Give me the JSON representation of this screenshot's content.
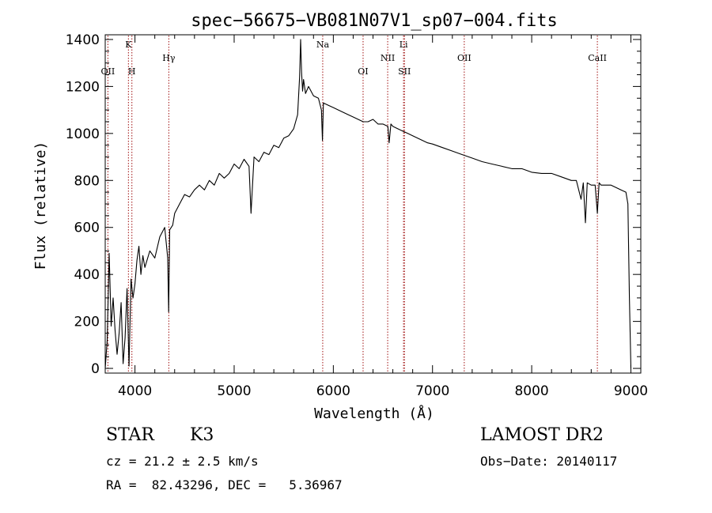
{
  "chart_data": {
    "type": "line",
    "title": "spec−56675−VB081N07V1_sp07−004.fits",
    "xlabel": "Wavelength (Å)",
    "ylabel": "Flux (relative)",
    "xlim": [
      3700,
      9100
    ],
    "ylim": [
      -20,
      1420
    ],
    "xticks": [
      4000,
      5000,
      6000,
      7000,
      8000,
      9000
    ],
    "yticks": [
      0,
      200,
      400,
      600,
      800,
      1000,
      1200,
      1400
    ],
    "grid": false,
    "line_color": "#000000",
    "marker_color": "#a01010",
    "spectral_lines": [
      {
        "label": "OII",
        "wavelength": 3727,
        "row": 2
      },
      {
        "label": "K",
        "wavelength": 3934,
        "row": 0
      },
      {
        "label": "H",
        "wavelength": 3969,
        "row": 2
      },
      {
        "label": "Hγ",
        "wavelength": 4341,
        "row": 1
      },
      {
        "label": "Na",
        "wavelength": 5893,
        "row": 0
      },
      {
        "label": "OI",
        "wavelength": 6300,
        "row": 2
      },
      {
        "label": "NII",
        "wavelength": 6548,
        "row": 1
      },
      {
        "label": "Li",
        "wavelength": 6708,
        "row": 0
      },
      {
        "label": "SII",
        "wavelength": 6717,
        "row": 2
      },
      {
        "label": "OII",
        "wavelength": 7320,
        "row": 1
      },
      {
        "label": "CaII",
        "wavelength": 8662,
        "row": 1
      }
    ],
    "series": [
      {
        "x": [
          3700,
          3720,
          3740,
          3760,
          3780,
          3800,
          3820,
          3840,
          3860,
          3880,
          3900,
          3920,
          3940,
          3960,
          3980,
          4000,
          4020,
          4040,
          4060,
          4080,
          4100,
          4150,
          4200,
          4250,
          4300,
          4330,
          4340,
          4350,
          4380,
          4400,
          4450,
          4500,
          4550,
          4600,
          4650,
          4700,
          4750,
          4800,
          4850,
          4900,
          4950,
          5000,
          5050,
          5100,
          5150,
          5170,
          5200,
          5250,
          5300,
          5350,
          5400,
          5450,
          5500,
          5550,
          5600,
          5640,
          5660,
          5670,
          5680,
          5690,
          5700,
          5720,
          5750,
          5800,
          5850,
          5880,
          5890,
          5900,
          5950,
          6000,
          6050,
          6100,
          6150,
          6200,
          6250,
          6300,
          6350,
          6400,
          6450,
          6500,
          6550,
          6563,
          6580,
          6600,
          6650,
          6700,
          6750,
          6800,
          6850,
          6900,
          6950,
          7000,
          7100,
          7200,
          7300,
          7400,
          7500,
          7600,
          7700,
          7800,
          7900,
          8000,
          8100,
          8200,
          8300,
          8400,
          8450,
          8498,
          8520,
          8542,
          8560,
          8600,
          8640,
          8662,
          8680,
          8700,
          8750,
          8800,
          8850,
          8900,
          8950,
          8970,
          8985,
          9000
        ],
        "y": [
          0,
          120,
          490,
          180,
          300,
          160,
          60,
          150,
          280,
          20,
          130,
          340,
          10,
          380,
          300,
          360,
          460,
          520,
          400,
          480,
          430,
          500,
          470,
          560,
          600,
          470,
          240,
          590,
          610,
          660,
          700,
          740,
          730,
          760,
          780,
          760,
          800,
          780,
          830,
          810,
          830,
          870,
          850,
          890,
          860,
          660,
          900,
          880,
          920,
          910,
          950,
          940,
          980,
          990,
          1020,
          1080,
          1240,
          1400,
          1260,
          1180,
          1230,
          1170,
          1200,
          1160,
          1150,
          1100,
          970,
          1130,
          1120,
          1110,
          1100,
          1090,
          1080,
          1070,
          1060,
          1050,
          1050,
          1060,
          1040,
          1040,
          1030,
          960,
          1040,
          1030,
          1020,
          1010,
          1000,
          990,
          980,
          970,
          960,
          955,
          940,
          925,
          910,
          895,
          880,
          870,
          860,
          850,
          850,
          835,
          830,
          830,
          815,
          800,
          800,
          720,
          790,
          620,
          790,
          780,
          780,
          660,
          790,
          780,
          780,
          780,
          770,
          760,
          750,
          700,
          300,
          0
        ]
      }
    ]
  },
  "info": {
    "object_class": "STAR",
    "subclass": "K3",
    "survey": "LAMOST DR2",
    "redshift_line": "cz = 21.2 ± 2.5 km/s",
    "obs_date": "Obs−Date: 20140117",
    "coords": "RA =  82.43296, DEC =   5.36967"
  }
}
